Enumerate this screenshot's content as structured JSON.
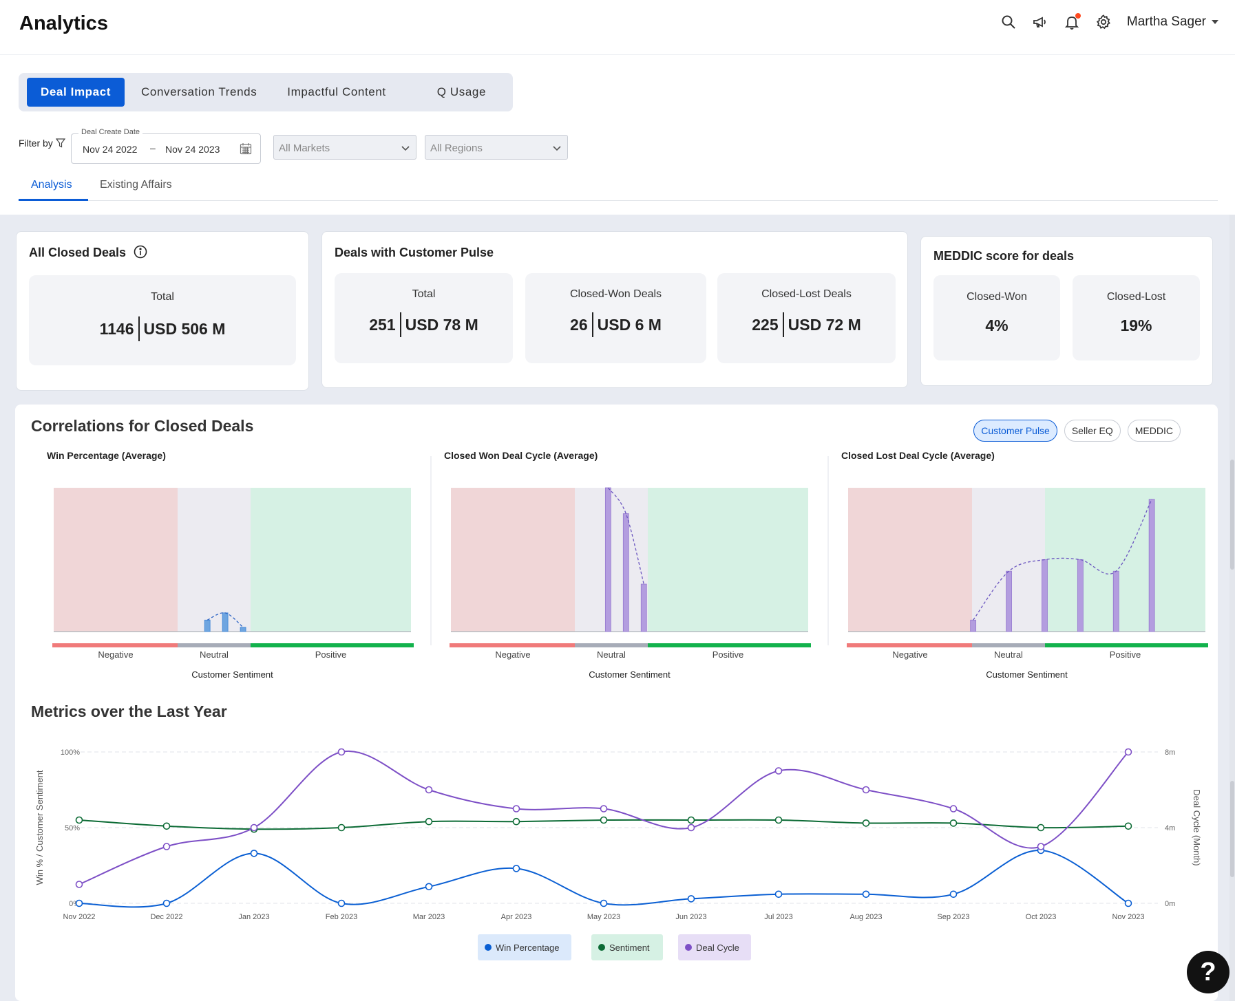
{
  "header": {
    "title": "Analytics",
    "user_name": "Martha Sager",
    "icons": [
      "search-icon",
      "megaphone-icon",
      "bell-icon",
      "gear-icon"
    ]
  },
  "tabs": [
    {
      "label": "Deal Impact",
      "active": true
    },
    {
      "label": "Conversation Trends",
      "active": false
    },
    {
      "label": "Impactful Content",
      "active": false
    },
    {
      "label": "Q Usage",
      "active": false
    }
  ],
  "filter": {
    "label": "Filter by",
    "date_legend": "Deal Create Date",
    "date_from": "Nov 24 2022",
    "date_sep": "–",
    "date_to": "Nov 24 2023",
    "markets_placeholder": "All Markets",
    "regions_placeholder": "All Regions"
  },
  "sub_tabs": [
    {
      "label": "Analysis",
      "active": true
    },
    {
      "label": "Existing Affairs",
      "active": false
    }
  ],
  "cards": {
    "all_closed": {
      "title": "All Closed Deals",
      "stats": [
        {
          "label": "Total",
          "count": "1146",
          "amount": "USD 506 M"
        }
      ]
    },
    "customer_pulse": {
      "title": "Deals with Customer Pulse",
      "stats": [
        {
          "label": "Total",
          "count": "251",
          "amount": "USD 78 M"
        },
        {
          "label": "Closed-Won Deals",
          "count": "26",
          "amount": "USD 6 M"
        },
        {
          "label": "Closed-Lost Deals",
          "count": "225",
          "amount": "USD 72 M"
        }
      ]
    },
    "meddic": {
      "title": "MEDDIC score for deals",
      "stats": [
        {
          "label": "Closed-Won",
          "value": "4%"
        },
        {
          "label": "Closed-Lost",
          "value": "19%"
        }
      ]
    }
  },
  "correlations": {
    "title": "Correlations for Closed Deals",
    "pills": [
      {
        "label": "Customer Pulse",
        "active": true
      },
      {
        "label": "Seller EQ",
        "active": false
      },
      {
        "label": "MEDDIC",
        "active": false
      }
    ]
  },
  "metrics": {
    "title": "Metrics over the Last Year"
  },
  "help_label": "?",
  "colors": {
    "accent": "#0b5cd6",
    "negative_zone": "#f0d6d7",
    "neutral_zone": "#ecebf1",
    "positive_zone": "#d6f1e4",
    "negative_bar": "#f07a7a",
    "neutral_bar": "#a7acb8",
    "positive_bar": "#12b24c",
    "win": "#0a5fd3",
    "sentiment": "#0c6b35",
    "deal_cycle": "#7d4fc6",
    "corr_blue_bar": "#6ea5e0",
    "corr_purple_bar": "#b39ddf"
  },
  "chart_data": [
    {
      "type": "bar",
      "title": "Win Percentage (Average)",
      "xlabel": "Customer Sentiment",
      "zones": [
        "Negative",
        "Neutral",
        "Positive"
      ],
      "x": [
        4.3,
        4.8,
        5.3
      ],
      "values": [
        8,
        13,
        3
      ],
      "ylim": [
        0,
        100
      ],
      "x_range": [
        0,
        10
      ]
    },
    {
      "type": "bar",
      "title": "Closed Won Deal Cycle (Average)",
      "xlabel": "Customer Sentiment",
      "zones": [
        "Negative",
        "Neutral",
        "Positive"
      ],
      "x": [
        4.4,
        4.9,
        5.4
      ],
      "values": [
        100,
        82,
        33
      ],
      "ylim": [
        0,
        100
      ],
      "x_range": [
        0,
        10
      ]
    },
    {
      "type": "bar",
      "title": "Closed Lost Deal Cycle (Average)",
      "xlabel": "Customer Sentiment",
      "zones": [
        "Negative",
        "Neutral",
        "Positive"
      ],
      "x": [
        3.5,
        4.5,
        5.5,
        6.5,
        7.5,
        8.5
      ],
      "values": [
        8,
        42,
        50,
        50,
        42,
        92
      ],
      "ylim": [
        0,
        100
      ],
      "x_range": [
        0,
        10
      ]
    },
    {
      "type": "line",
      "title": "Metrics over the Last Year",
      "ylabel": "Win % / Customer Sentiment",
      "y2label": "Deal Cycle (Month)",
      "y_ticks": [
        "100%",
        "50%",
        "0%"
      ],
      "y2_ticks": [
        "8m",
        "4m",
        "0m"
      ],
      "ylim": [
        0,
        100
      ],
      "y2lim": [
        0,
        8
      ],
      "categories": [
        "Nov 2022",
        "Dec 2022",
        "Jan 2023",
        "Feb 2023",
        "Mar 2023",
        "Apr 2023",
        "May 2023",
        "Jun 2023",
        "Jul 2023",
        "Aug 2023",
        "Sep 2023",
        "Oct 2023",
        "Nov 2023"
      ],
      "series": [
        {
          "name": "Win Percentage",
          "axis": "left",
          "values": [
            0,
            0,
            33,
            0,
            11,
            23,
            0,
            3,
            6,
            6,
            6,
            35,
            0
          ]
        },
        {
          "name": "Sentiment",
          "axis": "left",
          "values": [
            55,
            51,
            49,
            50,
            54,
            54,
            55,
            55,
            55,
            53,
            53,
            50,
            51
          ]
        },
        {
          "name": "Deal Cycle",
          "axis": "right",
          "values": [
            1,
            3,
            4,
            8,
            6,
            5,
            5,
            4,
            7,
            6,
            5,
            3,
            8
          ]
        }
      ],
      "grid": true,
      "legend": "bottom"
    }
  ]
}
